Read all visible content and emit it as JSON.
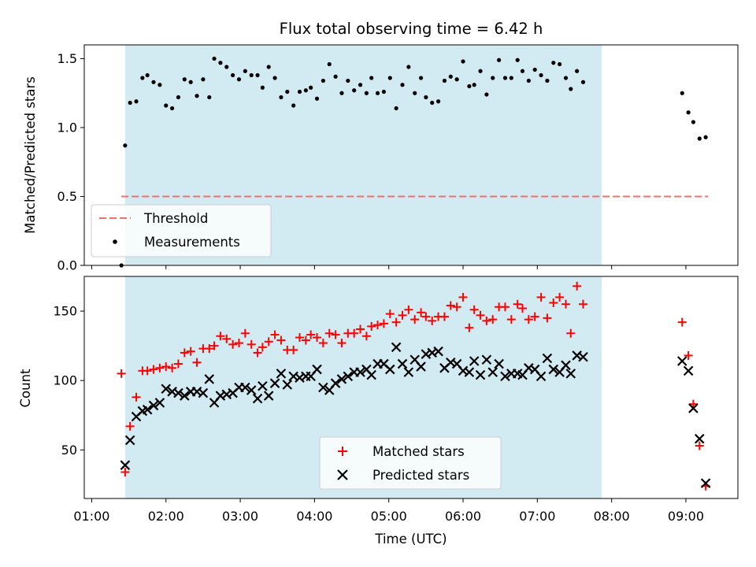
{
  "chart_data": [
    {
      "panel": "top",
      "type": "scatter",
      "title": "Flux total observing time = 6.42 h",
      "ylabel": "Matched/Predicted stars",
      "xlim": [
        "00:54",
        "09:42"
      ],
      "ylim": [
        0,
        1.6
      ],
      "yticks": [
        "0.0",
        "0.5",
        "1.0",
        "1.5"
      ],
      "shaded_span": [
        "01:27",
        "07:52"
      ],
      "legend_position": "lower left",
      "threshold": {
        "name": "Threshold",
        "value": 0.5,
        "x_start": "01:24",
        "x_end": "09:18",
        "color": "#f07070"
      },
      "series": [
        {
          "name": "Measurements",
          "color": "#000000",
          "marker": "dot",
          "points": [
            [
              "01:24",
              0.0
            ],
            [
              "01:27",
              0.87
            ],
            [
              "01:31",
              1.18
            ],
            [
              "01:36",
              1.19
            ],
            [
              "01:41",
              1.36
            ],
            [
              "01:45",
              1.38
            ],
            [
              "01:50",
              1.33
            ],
            [
              "01:55",
              1.31
            ],
            [
              "02:00",
              1.16
            ],
            [
              "02:05",
              1.14
            ],
            [
              "02:10",
              1.22
            ],
            [
              "02:15",
              1.35
            ],
            [
              "02:20",
              1.33
            ],
            [
              "02:25",
              1.23
            ],
            [
              "02:30",
              1.35
            ],
            [
              "02:35",
              1.22
            ],
            [
              "02:39",
              1.5
            ],
            [
              "02:44",
              1.47
            ],
            [
              "02:49",
              1.44
            ],
            [
              "02:54",
              1.38
            ],
            [
              "02:59",
              1.35
            ],
            [
              "03:04",
              1.41
            ],
            [
              "03:09",
              1.38
            ],
            [
              "03:14",
              1.38
            ],
            [
              "03:18",
              1.29
            ],
            [
              "03:23",
              1.44
            ],
            [
              "03:28",
              1.36
            ],
            [
              "03:33",
              1.22
            ],
            [
              "03:38",
              1.26
            ],
            [
              "03:43",
              1.16
            ],
            [
              "03:48",
              1.26
            ],
            [
              "03:53",
              1.27
            ],
            [
              "03:57",
              1.29
            ],
            [
              "04:02",
              1.21
            ],
            [
              "04:07",
              1.34
            ],
            [
              "04:12",
              1.46
            ],
            [
              "04:17",
              1.37
            ],
            [
              "04:22",
              1.25
            ],
            [
              "04:27",
              1.34
            ],
            [
              "04:32",
              1.27
            ],
            [
              "04:37",
              1.31
            ],
            [
              "04:42",
              1.25
            ],
            [
              "04:46",
              1.36
            ],
            [
              "04:51",
              1.25
            ],
            [
              "04:56",
              1.26
            ],
            [
              "05:01",
              1.36
            ],
            [
              "05:06",
              1.14
            ],
            [
              "05:11",
              1.31
            ],
            [
              "05:16",
              1.44
            ],
            [
              "05:21",
              1.25
            ],
            [
              "05:26",
              1.36
            ],
            [
              "05:30",
              1.22
            ],
            [
              "05:35",
              1.18
            ],
            [
              "05:40",
              1.19
            ],
            [
              "05:45",
              1.34
            ],
            [
              "05:50",
              1.37
            ],
            [
              "05:55",
              1.35
            ],
            [
              "06:00",
              1.48
            ],
            [
              "06:05",
              1.3
            ],
            [
              "06:09",
              1.31
            ],
            [
              "06:14",
              1.41
            ],
            [
              "06:19",
              1.24
            ],
            [
              "06:24",
              1.36
            ],
            [
              "06:29",
              1.49
            ],
            [
              "06:34",
              1.36
            ],
            [
              "06:39",
              1.36
            ],
            [
              "06:44",
              1.49
            ],
            [
              "06:48",
              1.41
            ],
            [
              "06:53",
              1.34
            ],
            [
              "06:58",
              1.42
            ],
            [
              "07:03",
              1.38
            ],
            [
              "07:08",
              1.34
            ],
            [
              "07:13",
              1.47
            ],
            [
              "07:18",
              1.46
            ],
            [
              "07:23",
              1.36
            ],
            [
              "07:27",
              1.28
            ],
            [
              "07:32",
              1.41
            ],
            [
              "07:37",
              1.33
            ],
            [
              "08:57",
              1.25
            ],
            [
              "09:02",
              1.11
            ],
            [
              "09:06",
              1.04
            ],
            [
              "09:11",
              0.92
            ],
            [
              "09:16",
              0.93
            ]
          ]
        }
      ]
    },
    {
      "panel": "bottom",
      "type": "scatter",
      "xlabel": "Time (UTC)",
      "ylabel": "Count",
      "xlim": [
        "00:54",
        "09:42"
      ],
      "ylim": [
        15,
        175
      ],
      "yticks": [
        "50",
        "100",
        "150"
      ],
      "xticks": [
        "01:00",
        "02:00",
        "03:00",
        "04:00",
        "05:00",
        "06:00",
        "07:00",
        "08:00",
        "09:00"
      ],
      "shaded_span": [
        "01:27",
        "07:52"
      ],
      "legend_position": "lower center",
      "series": [
        {
          "name": "Matched stars",
          "color": "#ff0000",
          "marker": "plus",
          "points": [
            [
              "01:24",
              105
            ],
            [
              "01:27",
              34
            ],
            [
              "01:31",
              67
            ],
            [
              "01:36",
              88
            ],
            [
              "01:41",
              107
            ],
            [
              "01:45",
              107
            ],
            [
              "01:50",
              108
            ],
            [
              "01:55",
              109
            ],
            [
              "02:00",
              110
            ],
            [
              "02:05",
              109
            ],
            [
              "02:10",
              112
            ],
            [
              "02:15",
              120
            ],
            [
              "02:20",
              121
            ],
            [
              "02:25",
              113
            ],
            [
              "02:30",
              123
            ],
            [
              "02:35",
              123
            ],
            [
              "02:39",
              125
            ],
            [
              "02:44",
              132
            ],
            [
              "02:49",
              130
            ],
            [
              "02:54",
              126
            ],
            [
              "02:59",
              127
            ],
            [
              "03:04",
              134
            ],
            [
              "03:09",
              126
            ],
            [
              "03:14",
              120
            ],
            [
              "03:18",
              124
            ],
            [
              "03:23",
              128
            ],
            [
              "03:28",
              133
            ],
            [
              "03:33",
              129
            ],
            [
              "03:38",
              122
            ],
            [
              "03:43",
              122
            ],
            [
              "03:48",
              131
            ],
            [
              "03:53",
              129
            ],
            [
              "03:57",
              133
            ],
            [
              "04:02",
              131
            ],
            [
              "04:07",
              127
            ],
            [
              "04:12",
              134
            ],
            [
              "04:17",
              133
            ],
            [
              "04:22",
              127
            ],
            [
              "04:27",
              134
            ],
            [
              "04:32",
              134
            ],
            [
              "04:37",
              137
            ],
            [
              "04:42",
              132
            ],
            [
              "04:46",
              139
            ],
            [
              "04:51",
              140
            ],
            [
              "04:56",
              141
            ],
            [
              "05:01",
              148
            ],
            [
              "05:06",
              142
            ],
            [
              "05:11",
              147
            ],
            [
              "05:16",
              151
            ],
            [
              "05:21",
              144
            ],
            [
              "05:26",
              149
            ],
            [
              "05:30",
              146
            ],
            [
              "05:35",
              143
            ],
            [
              "05:40",
              146
            ],
            [
              "05:45",
              146
            ],
            [
              "05:50",
              154
            ],
            [
              "05:55",
              153
            ],
            [
              "06:00",
              160
            ],
            [
              "06:05",
              138
            ],
            [
              "06:09",
              151
            ],
            [
              "06:14",
              147
            ],
            [
              "06:19",
              143
            ],
            [
              "06:24",
              144
            ],
            [
              "06:29",
              153
            ],
            [
              "06:34",
              153
            ],
            [
              "06:39",
              144
            ],
            [
              "06:44",
              155
            ],
            [
              "06:48",
              152
            ],
            [
              "06:53",
              144
            ],
            [
              "06:58",
              146
            ],
            [
              "07:03",
              160
            ],
            [
              "07:08",
              145
            ],
            [
              "07:13",
              156
            ],
            [
              "07:18",
              160
            ],
            [
              "07:23",
              155
            ],
            [
              "07:27",
              134
            ],
            [
              "07:32",
              168
            ],
            [
              "07:37",
              155
            ],
            [
              "08:57",
              142
            ],
            [
              "09:02",
              118
            ],
            [
              "09:06",
              83
            ],
            [
              "09:11",
              53
            ],
            [
              "09:16",
              24
            ]
          ]
        },
        {
          "name": "Predicted stars",
          "color": "#000000",
          "marker": "x",
          "points": [
            [
              "01:27",
              39
            ],
            [
              "01:31",
              57
            ],
            [
              "01:36",
              74
            ],
            [
              "01:41",
              78
            ],
            [
              "01:45",
              79
            ],
            [
              "01:50",
              82
            ],
            [
              "01:55",
              84
            ],
            [
              "02:00",
              94
            ],
            [
              "02:05",
              92
            ],
            [
              "02:10",
              91
            ],
            [
              "02:15",
              89
            ],
            [
              "02:20",
              92
            ],
            [
              "02:25",
              92
            ],
            [
              "02:30",
              91
            ],
            [
              "02:35",
              101
            ],
            [
              "02:39",
              84
            ],
            [
              "02:44",
              89
            ],
            [
              "02:49",
              90
            ],
            [
              "02:54",
              91
            ],
            [
              "02:59",
              95
            ],
            [
              "03:04",
              95
            ],
            [
              "03:09",
              93
            ],
            [
              "03:14",
              87
            ],
            [
              "03:18",
              96
            ],
            [
              "03:23",
              89
            ],
            [
              "03:28",
              98
            ],
            [
              "03:33",
              105
            ],
            [
              "03:38",
              97
            ],
            [
              "03:43",
              103
            ],
            [
              "03:48",
              102
            ],
            [
              "03:53",
              103
            ],
            [
              "03:57",
              103
            ],
            [
              "04:02",
              108
            ],
            [
              "04:07",
              95
            ],
            [
              "04:12",
              93
            ],
            [
              "04:17",
              98
            ],
            [
              "04:22",
              101
            ],
            [
              "04:27",
              103
            ],
            [
              "04:32",
              106
            ],
            [
              "04:37",
              106
            ],
            [
              "04:42",
              108
            ],
            [
              "04:46",
              104
            ],
            [
              "04:51",
              112
            ],
            [
              "04:56",
              112
            ],
            [
              "05:01",
              108
            ],
            [
              "05:06",
              124
            ],
            [
              "05:11",
              112
            ],
            [
              "05:16",
              106
            ],
            [
              "05:21",
              115
            ],
            [
              "05:26",
              110
            ],
            [
              "05:30",
              119
            ],
            [
              "05:35",
              120
            ],
            [
              "05:40",
              121
            ],
            [
              "05:45",
              109
            ],
            [
              "05:50",
              113
            ],
            [
              "05:55",
              112
            ],
            [
              "06:00",
              107
            ],
            [
              "06:05",
              106
            ],
            [
              "06:09",
              114
            ],
            [
              "06:14",
              104
            ],
            [
              "06:19",
              115
            ],
            [
              "06:24",
              106
            ],
            [
              "06:29",
              112
            ],
            [
              "06:34",
              103
            ],
            [
              "06:39",
              105
            ],
            [
              "06:44",
              105
            ],
            [
              "06:48",
              104
            ],
            [
              "06:53",
              109
            ],
            [
              "06:58",
              108
            ],
            [
              "07:03",
              103
            ],
            [
              "07:08",
              116
            ],
            [
              "07:13",
              108
            ],
            [
              "07:18",
              106
            ],
            [
              "07:23",
              111
            ],
            [
              "07:27",
              105
            ],
            [
              "07:32",
              118
            ],
            [
              "07:37",
              117
            ],
            [
              "08:57",
              114
            ],
            [
              "09:02",
              107
            ],
            [
              "09:06",
              80
            ],
            [
              "09:11",
              58
            ],
            [
              "09:16",
              26
            ]
          ]
        }
      ]
    }
  ],
  "colors": {
    "shade": "#add8e6",
    "threshold": "#f07070"
  }
}
